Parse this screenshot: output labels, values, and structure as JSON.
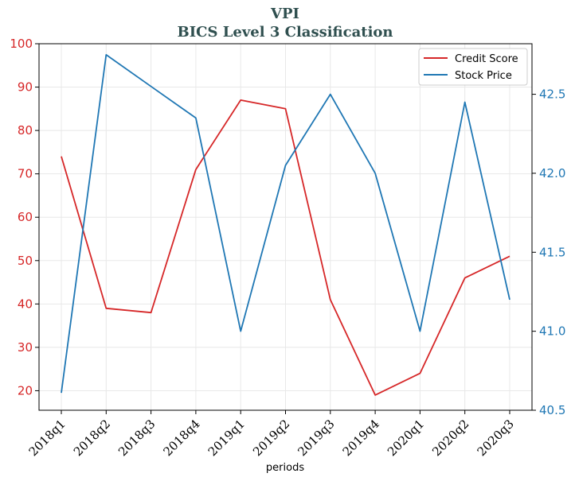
{
  "chart_data": {
    "type": "line",
    "title": "VPI",
    "subtitle": "BICS Level 3 Classification",
    "xlabel": "periods",
    "categories": [
      "2018q1",
      "2018q2",
      "2018q3",
      "2018q4",
      "2019q1",
      "2019q2",
      "2019q3",
      "2019q4",
      "2020q1",
      "2020q2",
      "2020q3"
    ],
    "y_left": {
      "ticks": [
        20,
        30,
        40,
        50,
        60,
        70,
        80,
        90,
        100
      ],
      "range": [
        15.5,
        100
      ],
      "color": "#d62728"
    },
    "y_right": {
      "ticks": [
        "40.5",
        "41.0",
        "41.5",
        "42.0",
        "42.5"
      ],
      "range": [
        40.5,
        42.82
      ],
      "color": "#1f77b4"
    },
    "grid": true,
    "legend_position": "top-right",
    "series": [
      {
        "name": "Credit Score",
        "axis": "left",
        "color": "#d62728",
        "values": [
          74,
          39,
          38,
          71,
          87,
          85,
          41,
          19,
          24,
          46,
          51
        ]
      },
      {
        "name": "Stock Price",
        "axis": "right",
        "color": "#1f77b4",
        "values": [
          40.61,
          42.75,
          42.55,
          42.35,
          41.0,
          42.05,
          42.5,
          42.0,
          41.0,
          42.45,
          41.2
        ]
      }
    ]
  }
}
